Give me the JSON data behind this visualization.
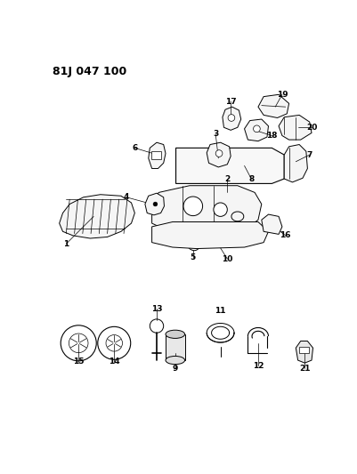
{
  "title": "81J 047 100",
  "bg_color": "#ffffff",
  "fig_width": 4.02,
  "fig_height": 5.33,
  "dpi": 100
}
